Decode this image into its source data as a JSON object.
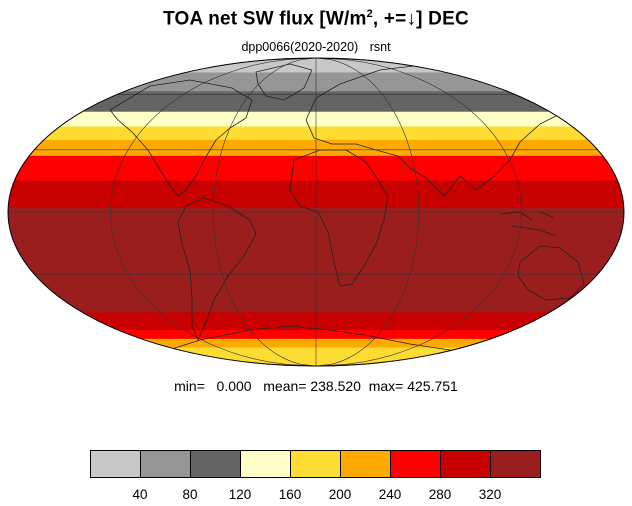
{
  "title": {
    "prefix": "TOA net SW flux [W/m",
    "superscript": "2",
    "suffix": ", +=↓]  DEC"
  },
  "subtitle": {
    "run": "dpp0066(2020-2020)",
    "variable": "rsnt"
  },
  "stats": {
    "text": "min=   0.000   mean= 238.520  max= 425.751"
  },
  "colorbar": {
    "colors": [
      "#c8c8c8",
      "#969696",
      "#646464",
      "#ffffc8",
      "#ffdc32",
      "#ffaa00",
      "#ff0000",
      "#c80000",
      "#9b1e1e"
    ],
    "labels": [
      "40",
      "80",
      "120",
      "160",
      "200",
      "240",
      "280",
      "320"
    ]
  },
  "chart_data": {
    "type": "heatmap",
    "projection": "mollweide",
    "field": "rsnt",
    "units": "W/m2",
    "month": "DEC",
    "levels": [
      40,
      80,
      120,
      160,
      200,
      240,
      280,
      320
    ],
    "zonal_bands": [
      {
        "lat": [
          75,
          90
        ],
        "value": 20
      },
      {
        "lat": [
          62,
          75
        ],
        "value": 60
      },
      {
        "lat": [
          50,
          62
        ],
        "value": 100
      },
      {
        "lat": [
          42,
          50
        ],
        "value": 140
      },
      {
        "lat": [
          35,
          42
        ],
        "value": 180
      },
      {
        "lat": [
          27,
          35
        ],
        "value": 220
      },
      {
        "lat": [
          15,
          27
        ],
        "value": 260
      },
      {
        "lat": [
          2,
          15
        ],
        "value": 300
      },
      {
        "lat": [
          -50,
          2
        ],
        "value": 340
      },
      {
        "lat": [
          -60,
          -50
        ],
        "value": 300
      },
      {
        "lat": [
          -66,
          -60
        ],
        "value": 260
      },
      {
        "lat": [
          -72,
          -66
        ],
        "value": 220
      },
      {
        "lat": [
          -90,
          -72
        ],
        "value": 180
      }
    ],
    "min": 0.0,
    "mean": 238.52,
    "max": 425.751
  }
}
